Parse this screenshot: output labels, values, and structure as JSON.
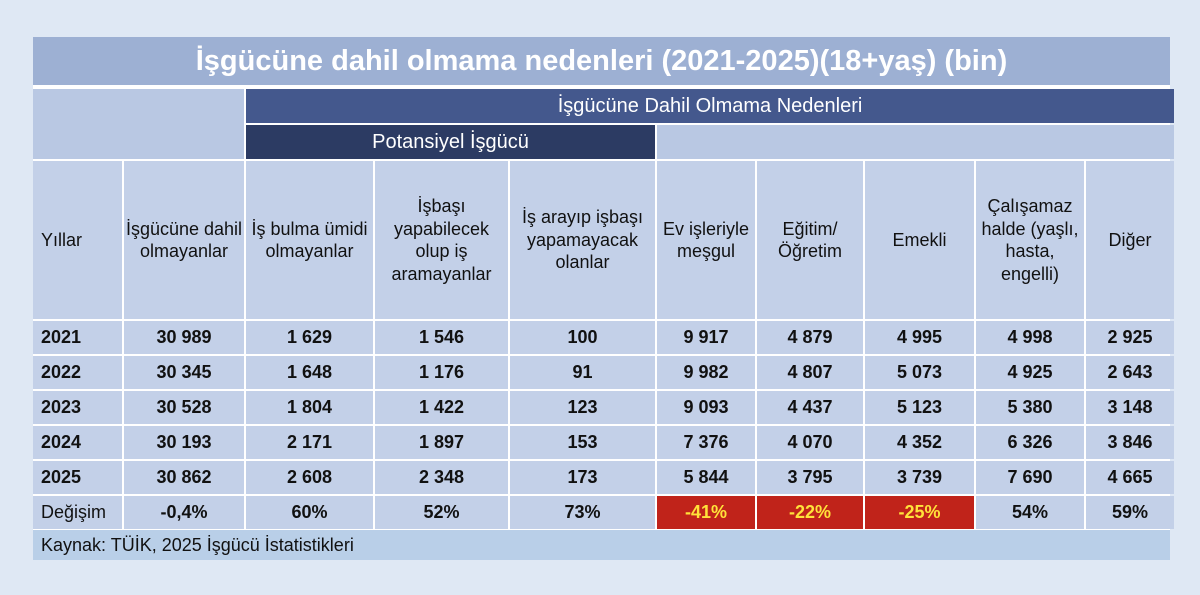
{
  "title": "İşgücüne dahil olmama nedenleri  (2021-2025)(18+yaş) (bin)",
  "header": {
    "group_main": "İşgücüne Dahil Olmama Nedenleri",
    "group_potential": "Potansiyel İşgücü",
    "columns": [
      "Yıllar",
      "İşgücüne dahil olmayanlar",
      "İş bulma ümidi olmayanlar",
      "İşbaşı yapabilecek olup iş aramayanlar",
      "İş arayıp işbaşı yapamayacak olanlar",
      "Ev işleriyle meşgul",
      "Eğitim/ Öğretim",
      "Emekli",
      "Çalışamaz halde (yaşlı, hasta, engelli)",
      "Diğer"
    ]
  },
  "rows": [
    [
      "2021",
      "30 989",
      "1 629",
      "1 546",
      "100",
      "9 917",
      "4 879",
      "4 995",
      "4 998",
      "2 925"
    ],
    [
      "2022",
      "30 345",
      "1 648",
      "1 176",
      "91",
      "9 982",
      "4 807",
      "5 073",
      "4 925",
      "2 643"
    ],
    [
      "2023",
      "30 528",
      "1 804",
      "1 422",
      "123",
      "9 093",
      "4 437",
      "5 123",
      "5 380",
      "3 148"
    ],
    [
      "2024",
      "30 193",
      "2 171",
      "1 897",
      "153",
      "7 376",
      "4 070",
      "4 352",
      "6 326",
      "3 846"
    ],
    [
      "2025",
      "30 862",
      "2 608",
      "2 348",
      "173",
      "5 844",
      "3 795",
      "3 739",
      "7 690",
      "4 665"
    ]
  ],
  "change_row": [
    "Değişim",
    "-0,4%",
    "60%",
    "52%",
    "73%",
    "-41%",
    "-22%",
    "-25%",
    "54%",
    "59%"
  ],
  "highlight_color": "#c0231a",
  "highlight_text_color": "#ffe23a",
  "source": "Kaynak: TÜİK, 2025 İşgücü İstatistikleri"
}
